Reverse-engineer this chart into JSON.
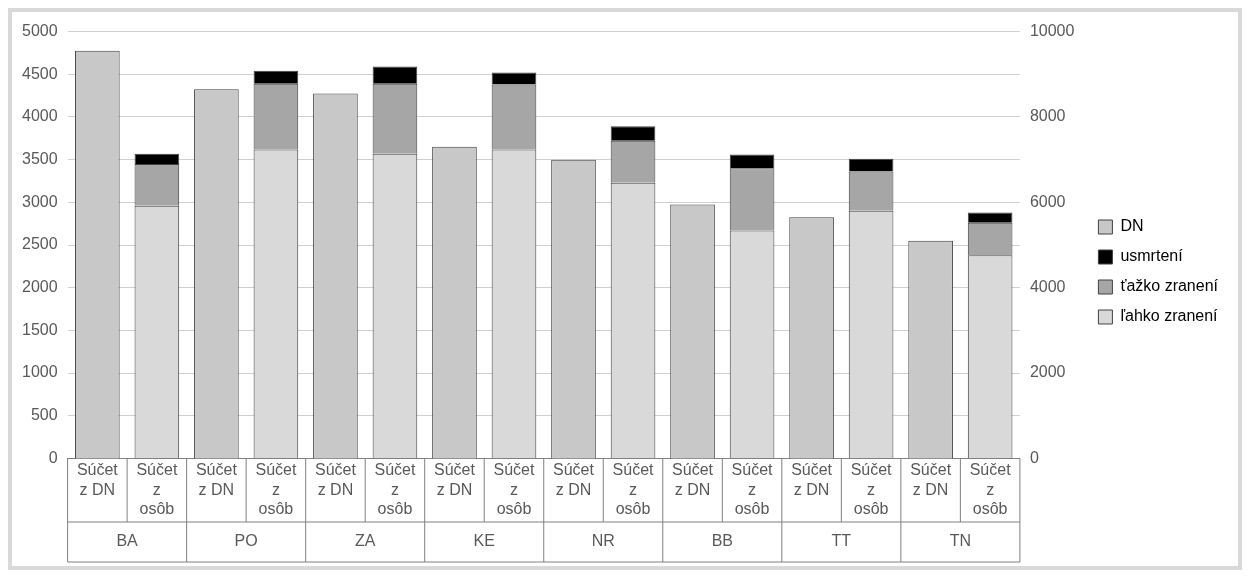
{
  "chart_data": {
    "type": "bar",
    "stacked": true,
    "categories": [
      "Súčet z DN",
      "Súčet z osôb",
      "Súčet z DN",
      "Súčet z osôb",
      "Súčet z DN",
      "Súčet z osôb",
      "Súčet z DN",
      "Súčet z osôb",
      "Súčet z DN",
      "Súčet z osôb",
      "Súčet z DN",
      "Súčet z osôb",
      "Súčet z DN",
      "Súčet z osôb",
      "Súčet z DN",
      "Súčet z osôb"
    ],
    "annotations": [
      "BA",
      "PO",
      "ZA",
      "KE",
      "NR",
      "BB",
      "TT",
      "TN"
    ],
    "series": [
      {
        "name": "ľahko zranení",
        "color": "#d9d9d9",
        "values": [
          null,
          2960,
          null,
          3620,
          null,
          3570,
          null,
          3620,
          null,
          3230,
          null,
          2670,
          null,
          2900,
          null,
          2380
        ]
      },
      {
        "name": "ťažko zranení",
        "color": "#a6a6a6",
        "values": [
          null,
          490,
          null,
          770,
          null,
          820,
          null,
          760,
          null,
          490,
          null,
          730,
          null,
          460,
          null,
          380
        ]
      },
      {
        "name": "usmrtení",
        "color": "#000000",
        "values": [
          null,
          120,
          null,
          150,
          null,
          200,
          null,
          140,
          null,
          170,
          null,
          160,
          null,
          150,
          null,
          120
        ]
      },
      {
        "name": "DN",
        "color": "#c8c8c8",
        "axis": "y2",
        "values": [
          9550,
          null,
          8650,
          null,
          8550,
          null,
          7300,
          null,
          7000,
          null,
          5950,
          null,
          5650,
          null,
          5100,
          null
        ]
      }
    ],
    "ylim": [
      0,
      5000
    ],
    "yticks": [
      0,
      500,
      1000,
      1500,
      2000,
      2500,
      3000,
      3500,
      4000,
      4500,
      5000
    ],
    "y2lim": [
      0,
      10000
    ],
    "y2ticks": [
      0,
      2000,
      4000,
      6000,
      8000,
      10000
    ],
    "grid": "y",
    "legend": "right"
  }
}
